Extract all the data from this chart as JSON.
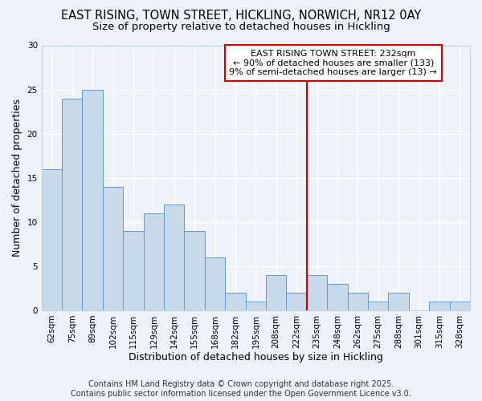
{
  "title1": "EAST RISING, TOWN STREET, HICKLING, NORWICH, NR12 0AY",
  "title2": "Size of property relative to detached houses in Hickling",
  "xlabel": "Distribution of detached houses by size in Hickling",
  "ylabel": "Number of detached properties",
  "categories": [
    "62sqm",
    "75sqm",
    "89sqm",
    "102sqm",
    "115sqm",
    "129sqm",
    "142sqm",
    "155sqm",
    "168sqm",
    "182sqm",
    "195sqm",
    "208sqm",
    "222sqm",
    "235sqm",
    "248sqm",
    "262sqm",
    "275sqm",
    "288sqm",
    "301sqm",
    "315sqm",
    "328sqm"
  ],
  "values": [
    16,
    24,
    25,
    14,
    9,
    11,
    12,
    9,
    6,
    2,
    1,
    4,
    2,
    4,
    3,
    2,
    1,
    2,
    0,
    1,
    1
  ],
  "bar_color": "#c8d9ea",
  "bar_edge_color": "#5b9bd5",
  "property_line_index": 13,
  "property_line_color": "#cc0000",
  "annotation_text": "EAST RISING TOWN STREET: 232sqm\n← 90% of detached houses are smaller (133)\n9% of semi-detached houses are larger (13) →",
  "annotation_box_color": "#ffffff",
  "annotation_box_edge": "#cc0000",
  "ylim": [
    0,
    30
  ],
  "yticks": [
    0,
    5,
    10,
    15,
    20,
    25,
    30
  ],
  "footer": "Contains HM Land Registry data © Crown copyright and database right 2025.\nContains public sector information licensed under the Open Government Licence v3.0.",
  "bg_color": "#edf3f9",
  "plot_bg_color": "#edf3f9",
  "grid_color": "#ffffff",
  "title_fontsize": 10.5,
  "subtitle_fontsize": 9.5,
  "axis_label_fontsize": 9,
  "tick_fontsize": 7.5,
  "annot_fontsize": 8,
  "footer_fontsize": 7
}
